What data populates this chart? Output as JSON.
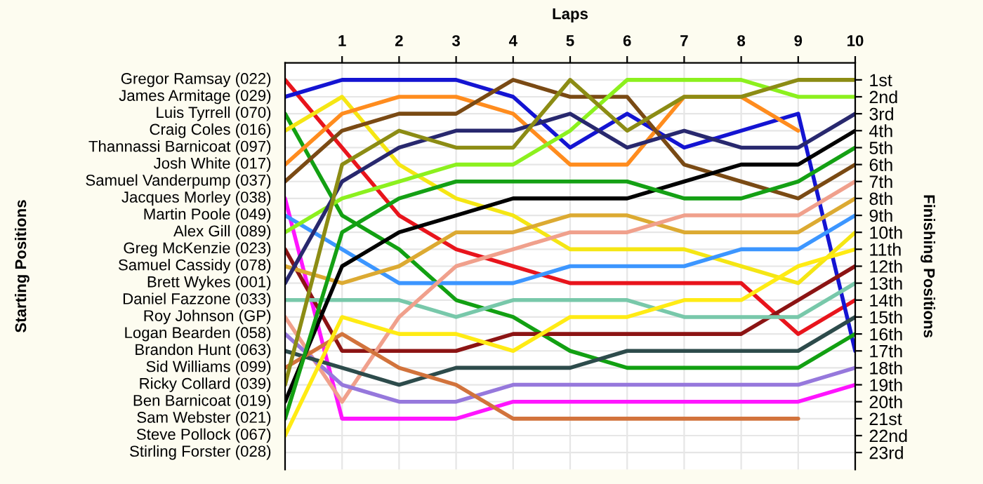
{
  "chart_data": {
    "type": "line",
    "xlabel": "Laps",
    "ylabel": "Finishing Positions",
    "annotations": [
      "Thannassi Barnicoat (097)",
      "Stirling Forster (028)",
      "Starting Positions"
    ],
    "x": [
      0,
      1,
      2,
      3,
      4,
      5,
      6,
      7,
      8,
      9,
      10
    ],
    "xlim": [
      0,
      10
    ],
    "xticks": [
      1,
      2,
      3,
      4,
      5,
      6,
      7,
      8,
      9,
      10
    ],
    "ylim": [
      24,
      0
    ],
    "yticks": [
      {
        "value": 1,
        "label": "1st"
      },
      {
        "value": 2,
        "label": "2nd"
      },
      {
        "value": 3,
        "label": "3rd"
      },
      {
        "value": 4,
        "label": "4th"
      },
      {
        "value": 5,
        "label": "5th"
      },
      {
        "value": 6,
        "label": "6th"
      },
      {
        "value": 7,
        "label": "7th"
      },
      {
        "value": 8,
        "label": "8th"
      },
      {
        "value": 9,
        "label": "9th"
      },
      {
        "value": 10,
        "label": "10th"
      },
      {
        "value": 11,
        "label": "11th"
      },
      {
        "value": 12,
        "label": "12th"
      },
      {
        "value": 13,
        "label": "13th"
      },
      {
        "value": 14,
        "label": "14th"
      },
      {
        "value": 15,
        "label": "15th"
      },
      {
        "value": 16,
        "label": "16th"
      },
      {
        "value": 17,
        "label": "17th"
      },
      {
        "value": 18,
        "label": "18th"
      },
      {
        "value": 19,
        "label": "19th"
      },
      {
        "value": 20,
        "label": "20th"
      },
      {
        "value": 21,
        "label": "21st"
      },
      {
        "value": 22,
        "label": "22nd"
      },
      {
        "value": 23,
        "label": "23rd"
      }
    ],
    "grid": true,
    "marker": "none",
    "line_style": "solid",
    "series": [
      {
        "name": "Gregor Ramsay (022)",
        "color": "#e8141c",
        "values": [
          1,
          5,
          9,
          11,
          12,
          13,
          13,
          13,
          13,
          16,
          14
        ]
      },
      {
        "name": "James Armitage (029)",
        "color": "#1414d2",
        "values": [
          2,
          1,
          1,
          1,
          2,
          5,
          3,
          5,
          4,
          3,
          17
        ]
      },
      {
        "name": "Luis Tyrrell (070)",
        "color": "#12a012",
        "values": [
          3,
          9,
          11,
          14,
          15,
          17,
          18,
          18,
          18,
          18,
          16
        ]
      },
      {
        "name": "Craig Coles (016)",
        "color": "#f5e614",
        "values": [
          4,
          2,
          6,
          8,
          9,
          11,
          11,
          11,
          12,
          13,
          10
        ]
      },
      {
        "name": "Josh White (017)",
        "color": "#ff8c1e",
        "values": [
          6,
          3,
          2,
          2,
          3,
          6,
          6,
          2,
          2,
          4,
          null
        ]
      },
      {
        "name": "Samuel Vanderpump (037)",
        "color": "#7a4a14",
        "values": [
          7,
          4,
          3,
          3,
          1,
          2,
          2,
          6,
          7,
          8,
          6
        ]
      },
      {
        "name": "Jacques Morley (038)",
        "color": "#ff14ff",
        "values": [
          8,
          21,
          21,
          21,
          20,
          20,
          20,
          20,
          20,
          20,
          19
        ]
      },
      {
        "name": "Martin Poole (049)",
        "color": "#3c96ff",
        "values": [
          9,
          11,
          13,
          13,
          13,
          12,
          12,
          12,
          11,
          11,
          9
        ]
      },
      {
        "name": "Alex Gill (089)",
        "color": "#8cf01e",
        "values": [
          10,
          8,
          7,
          6,
          6,
          4,
          1,
          1,
          1,
          2,
          2
        ]
      },
      {
        "name": "Greg McKenzie (023)",
        "color": "#8c1414",
        "values": [
          11,
          17,
          17,
          17,
          16,
          16,
          16,
          16,
          16,
          14,
          12
        ]
      },
      {
        "name": "Samuel Cassidy (078)",
        "color": "#dcaa32",
        "values": [
          12,
          13,
          12,
          10,
          10,
          9,
          9,
          10,
          10,
          10,
          8
        ]
      },
      {
        "name": "Brett Wykes (001)",
        "color": "#28286e",
        "values": [
          13,
          7,
          5,
          4,
          4,
          3,
          5,
          4,
          5,
          5,
          3
        ]
      },
      {
        "name": "Daniel Fazzone (033)",
        "color": "#78c8aa",
        "values": [
          14,
          14,
          14,
          15,
          14,
          14,
          14,
          15,
          15,
          15,
          13
        ]
      },
      {
        "name": "Roy Johnson (GP)",
        "color": "#f0a08c",
        "values": [
          15,
          20,
          15,
          12,
          11,
          10,
          10,
          9,
          9,
          9,
          7
        ]
      },
      {
        "name": "Logan Bearden (058)",
        "color": "#9678dc",
        "values": [
          16,
          19,
          20,
          20,
          19,
          19,
          19,
          19,
          19,
          19,
          18
        ]
      },
      {
        "name": "Brandon Hunt (063)",
        "color": "#2d4b4b",
        "values": [
          17,
          18,
          19,
          18,
          18,
          18,
          17,
          17,
          17,
          17,
          15
        ]
      },
      {
        "name": "Sid Williams (099)",
        "color": "#d2733c",
        "values": [
          18,
          16,
          18,
          19,
          21,
          21,
          21,
          21,
          21,
          21,
          null
        ]
      },
      {
        "name": "Ricky Collard (039)",
        "color": "#8c8c14",
        "values": [
          19,
          6,
          4,
          5,
          5,
          1,
          4,
          2,
          2,
          1,
          1
        ]
      },
      {
        "name": "Ben Barnicoat (019)",
        "color": "#000000",
        "values": [
          20,
          12,
          10,
          9,
          8,
          8,
          8,
          7,
          6,
          6,
          4
        ]
      },
      {
        "name": "Sam Webster (021)",
        "color": "#14a014",
        "values": [
          21,
          10,
          8,
          7,
          7,
          7,
          7,
          8,
          8,
          7,
          5
        ]
      },
      {
        "name": "Steve Pollock (067)",
        "color": "#ffeb14",
        "values": [
          22,
          15,
          16,
          16,
          17,
          15,
          15,
          14,
          14,
          12,
          11
        ]
      }
    ]
  }
}
